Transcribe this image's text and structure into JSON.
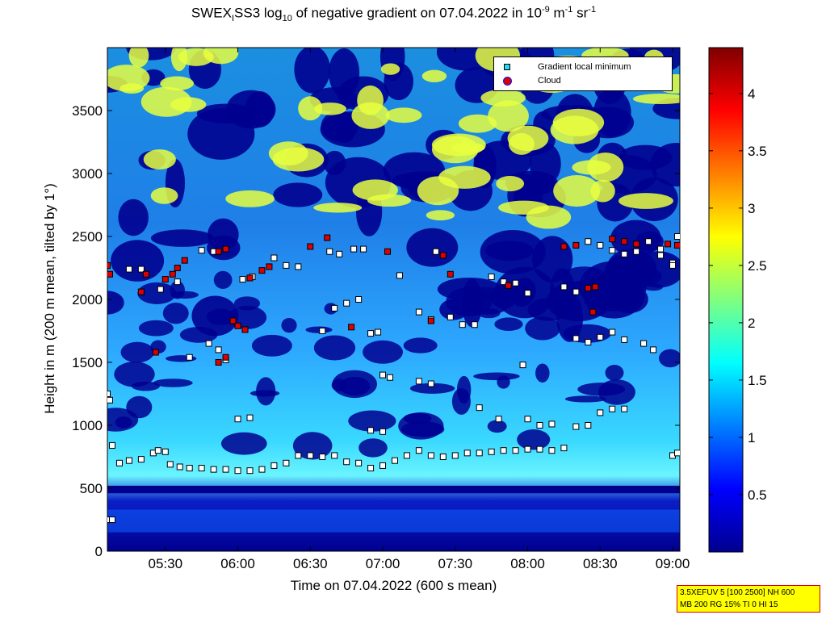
{
  "title": {
    "prefix": "SWEX",
    "sub1": "I",
    "mid1": "SS3 log",
    "sub2": "10",
    "mid2": " of negative gradient on 07.04.2022 in 10",
    "sup1": "-9",
    "mid3": " m",
    "sup2": "-1",
    "mid4": " sr",
    "sup3": "-1"
  },
  "xlabel": "Time on 07.04.2022 (600 s mean)",
  "ylabel": "Height in m (200 m mean, tilted by 1°)",
  "legend": {
    "item1": "Gradient local minimum",
    "item2": "Cloud"
  },
  "infobox": {
    "line1": "3.5XEFUV 5 [100 2500] NH 600",
    "line2": "MB 200 RG 15% TI 0 HI 15"
  },
  "colors": {
    "background_low": "#00008f",
    "marker_fill": "#ffffff",
    "cloud_red": "#dd0000"
  },
  "chart_data": {
    "type": "heatmap",
    "x_range": [
      "05:06",
      "09:03"
    ],
    "x_ticks": [
      "05:30",
      "06:00",
      "06:30",
      "07:00",
      "07:30",
      "08:00",
      "08:30",
      "09:00"
    ],
    "y_range": [
      0,
      4000
    ],
    "y_ticks": [
      "0",
      "500",
      "1000",
      "1500",
      "2000",
      "2500",
      "3000",
      "3500"
    ],
    "colorbar": {
      "range": [
        0,
        4.4
      ],
      "ticks": [
        "0.5",
        "1",
        "1.5",
        "2",
        "2.5",
        "3",
        "3.5",
        "4"
      ],
      "colormap": "jet"
    },
    "series": [
      {
        "name": "Gradient local minimum",
        "points": [
          [
            "05:06",
            250
          ],
          [
            "05:08",
            250
          ],
          [
            "05:06",
            1250
          ],
          [
            "05:07",
            1200
          ],
          [
            "05:08",
            840
          ],
          [
            "05:11",
            700
          ],
          [
            "05:15",
            720
          ],
          [
            "05:20",
            730
          ],
          [
            "05:25",
            780
          ],
          [
            "05:27",
            800
          ],
          [
            "05:30",
            790
          ],
          [
            "05:32",
            690
          ],
          [
            "05:36",
            670
          ],
          [
            "05:40",
            660
          ],
          [
            "05:45",
            660
          ],
          [
            "05:50",
            650
          ],
          [
            "05:55",
            650
          ],
          [
            "06:00",
            640
          ],
          [
            "06:05",
            640
          ],
          [
            "06:10",
            650
          ],
          [
            "06:15",
            680
          ],
          [
            "06:20",
            700
          ],
          [
            "06:25",
            760
          ],
          [
            "06:30",
            760
          ],
          [
            "06:35",
            750
          ],
          [
            "06:40",
            760
          ],
          [
            "06:45",
            710
          ],
          [
            "06:50",
            700
          ],
          [
            "06:55",
            660
          ],
          [
            "07:00",
            680
          ],
          [
            "07:05",
            720
          ],
          [
            "07:10",
            760
          ],
          [
            "07:15",
            800
          ],
          [
            "07:20",
            760
          ],
          [
            "07:25",
            750
          ],
          [
            "07:30",
            760
          ],
          [
            "07:35",
            780
          ],
          [
            "07:40",
            780
          ],
          [
            "07:45",
            790
          ],
          [
            "07:50",
            800
          ],
          [
            "07:55",
            800
          ],
          [
            "08:00",
            810
          ],
          [
            "08:05",
            810
          ],
          [
            "08:10",
            800
          ],
          [
            "08:15",
            820
          ],
          [
            "08:20",
            990
          ],
          [
            "08:25",
            1000
          ],
          [
            "08:30",
            1100
          ],
          [
            "08:35",
            1130
          ],
          [
            "08:40",
            1130
          ],
          [
            "09:00",
            760
          ],
          [
            "09:02",
            780
          ],
          [
            "05:15",
            2240
          ],
          [
            "05:20",
            2240
          ],
          [
            "05:28",
            2080
          ],
          [
            "05:35",
            2140
          ],
          [
            "05:45",
            2390
          ],
          [
            "05:50",
            2380
          ],
          [
            "05:40",
            1540
          ],
          [
            "05:48",
            1650
          ],
          [
            "05:52",
            1600
          ],
          [
            "05:55",
            1520
          ],
          [
            "06:00",
            1050
          ],
          [
            "06:05",
            1060
          ],
          [
            "06:02",
            2160
          ],
          [
            "06:06",
            2180
          ],
          [
            "06:15",
            2330
          ],
          [
            "06:20",
            2270
          ],
          [
            "06:25",
            2260
          ],
          [
            "06:35",
            1750
          ],
          [
            "06:38",
            2380
          ],
          [
            "06:42",
            2360
          ],
          [
            "06:48",
            2400
          ],
          [
            "06:52",
            2400
          ],
          [
            "06:40",
            1930
          ],
          [
            "06:45",
            1970
          ],
          [
            "06:50",
            2000
          ],
          [
            "06:55",
            1730
          ],
          [
            "06:58",
            1740
          ],
          [
            "07:00",
            1400
          ],
          [
            "07:03",
            1380
          ],
          [
            "06:55",
            960
          ],
          [
            "07:00",
            950
          ],
          [
            "07:07",
            2190
          ],
          [
            "07:15",
            1900
          ],
          [
            "07:20",
            1840
          ],
          [
            "07:28",
            1860
          ],
          [
            "07:33",
            1800
          ],
          [
            "07:38",
            1800
          ],
          [
            "07:15",
            1350
          ],
          [
            "07:20",
            1330
          ],
          [
            "07:22",
            2380
          ],
          [
            "07:45",
            2180
          ],
          [
            "07:50",
            2140
          ],
          [
            "07:55",
            2130
          ],
          [
            "08:00",
            2050
          ],
          [
            "07:40",
            1140
          ],
          [
            "07:48",
            1050
          ],
          [
            "08:00",
            1050
          ],
          [
            "08:05",
            1000
          ],
          [
            "07:58",
            1480
          ],
          [
            "08:10",
            1010
          ],
          [
            "08:15",
            2100
          ],
          [
            "08:20",
            2060
          ],
          [
            "08:20",
            1690
          ],
          [
            "08:25",
            1660
          ],
          [
            "08:30",
            1700
          ],
          [
            "08:35",
            1740
          ],
          [
            "08:40",
            1680
          ],
          [
            "08:25",
            2460
          ],
          [
            "08:30",
            2430
          ],
          [
            "08:35",
            2390
          ],
          [
            "08:40",
            2360
          ],
          [
            "08:45",
            2380
          ],
          [
            "08:48",
            1650
          ],
          [
            "08:52",
            1600
          ],
          [
            "08:50",
            2460
          ],
          [
            "08:55",
            2400
          ],
          [
            "09:00",
            2290
          ],
          [
            "09:02",
            2500
          ],
          [
            "08:55",
            2350
          ],
          [
            "09:00",
            2270
          ]
        ]
      },
      {
        "name": "Cloud",
        "points": [
          [
            "05:06",
            2270
          ],
          [
            "05:07",
            2200
          ],
          [
            "05:20",
            2060
          ],
          [
            "05:22",
            2200
          ],
          [
            "05:30",
            2160
          ],
          [
            "05:33",
            2200
          ],
          [
            "05:35",
            2250
          ],
          [
            "05:38",
            2310
          ],
          [
            "05:52",
            2380
          ],
          [
            "05:55",
            2400
          ],
          [
            "05:58",
            1830
          ],
          [
            "06:00",
            1790
          ],
          [
            "06:03",
            1760
          ],
          [
            "05:26",
            1580
          ],
          [
            "05:52",
            1500
          ],
          [
            "05:55",
            1540
          ],
          [
            "06:05",
            2170
          ],
          [
            "06:10",
            2230
          ],
          [
            "06:13",
            2260
          ],
          [
            "06:30",
            2420
          ],
          [
            "06:37",
            2490
          ],
          [
            "06:47",
            1780
          ],
          [
            "07:02",
            2380
          ],
          [
            "07:25",
            2350
          ],
          [
            "07:20",
            1830
          ],
          [
            "07:28",
            2200
          ],
          [
            "07:52",
            2110
          ],
          [
            "08:15",
            2420
          ],
          [
            "08:20",
            2430
          ],
          [
            "08:25",
            2090
          ],
          [
            "08:28",
            2100
          ],
          [
            "08:27",
            1900
          ],
          [
            "08:35",
            2480
          ],
          [
            "08:40",
            2460
          ],
          [
            "08:45",
            2440
          ],
          [
            "08:58",
            2440
          ],
          [
            "09:02",
            2430
          ]
        ]
      }
    ]
  }
}
